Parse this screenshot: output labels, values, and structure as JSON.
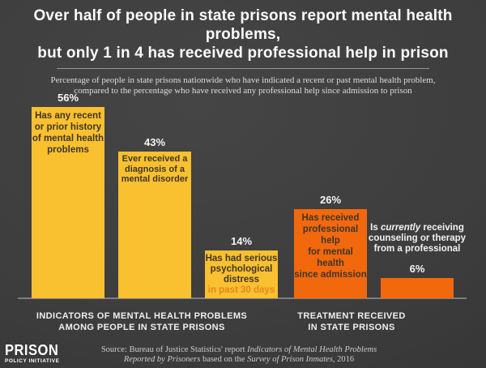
{
  "header": {
    "title_line1": "Over half of people in state prisons report mental health problems,",
    "title_line2": "but only 1 in 4 has received professional help in prison",
    "subtitle_line1": "Percentage of people in state prisons nationwide who have indicated a recent or past mental health problem,",
    "subtitle_line2": "compared to the percentage who have received any professional help since admission to prison"
  },
  "colors": {
    "background": "#3d3d3d",
    "yellow_bar": "#f9c02f",
    "orange_bar": "#f2680c",
    "bar_text_dark": "#3d362b",
    "sublabel_orange": "#e8871c",
    "axis_line": "#8f8f8f",
    "text_white": "#f6f6f6"
  },
  "chart_data": {
    "type": "bar",
    "unit": "percent",
    "ylim": [
      0,
      60
    ],
    "grid": false,
    "legend": "none",
    "categories": [
      "Has any recent or prior history of mental health problems",
      "Ever received a diagnosis of a mental disorder",
      "Has had serious psychological distress in past 30 days",
      "Has received professional help for mental health since admission",
      "Is currently receiving counseling or therapy from a professional"
    ],
    "values": [
      56,
      43,
      14,
      26,
      6
    ],
    "groups": [
      {
        "label_line1": "INDICATORS OF MENTAL HEALTH PROBLEMS",
        "label_line2": "AMONG PEOPLE IN STATE PRISONS"
      },
      {
        "label_line1": "TREATMENT RECEIVED",
        "label_line2": "IN STATE PRISONS"
      }
    ],
    "bars": [
      {
        "value": 56,
        "value_label": "56%",
        "group": 0,
        "color": "#f9c02f",
        "label_placement": "inside",
        "label_lines": [
          "Has any recent",
          "or prior history",
          "of mental health",
          "problems"
        ]
      },
      {
        "value": 43,
        "value_label": "43%",
        "group": 0,
        "color": "#f9c02f",
        "label_placement": "inside",
        "label_lines": [
          "Ever received a",
          "diagnosis of a",
          "mental disorder"
        ]
      },
      {
        "value": 14,
        "value_label": "14%",
        "group": 0,
        "color": "#f9c02f",
        "label_placement": "inside",
        "label_lines": [
          "Has had serious",
          "psychological",
          "distress"
        ],
        "sublabel": "in past 30 days",
        "sublabel_color": "#e8871c"
      },
      {
        "value": 26,
        "value_label": "26%",
        "group": 1,
        "color": "#f2680c",
        "label_placement": "inside",
        "label_lines": [
          "Has received",
          "professional help",
          "for mental health",
          "since admission"
        ]
      },
      {
        "value": 6,
        "value_label": "6%",
        "group": 1,
        "color": "#f2680c",
        "label_placement": "outside",
        "label_lines": [
          "Is *currently* receiving",
          "counseling or therapy",
          "from a professional"
        ]
      }
    ]
  },
  "footer": {
    "logo_line1": "PRISON",
    "logo_line2": "POLICY INITIATIVE",
    "source_line1": "Source: Bureau of Justice Statistics' report *Indicators of Mental Health Problems*",
    "source_line2": "*Reported by Prisoners* based on the *Survey of Prison Inmates*, 2016"
  }
}
